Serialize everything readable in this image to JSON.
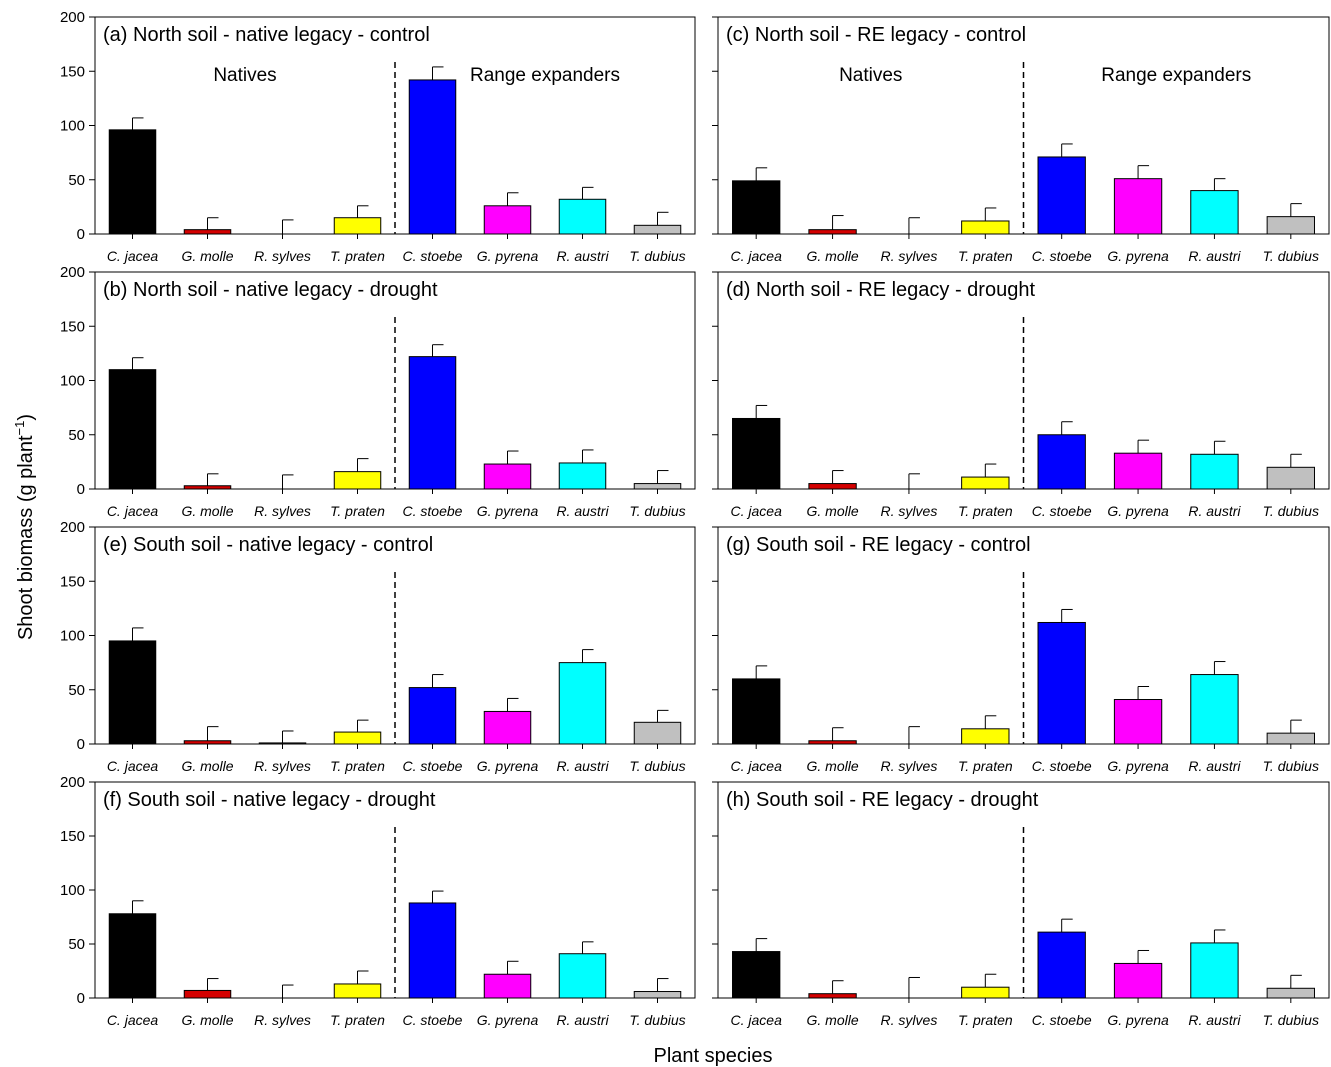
{
  "figure": {
    "ylabel": "Shoot biomass (g plant",
    "ylabel_sup": "−1",
    "ylabel_close": ")",
    "xlabel": "Plant species"
  },
  "chart_data": [
    {
      "type": "bar",
      "title": "(a) North soil - native legacy - control",
      "categories": [
        "C. jacea",
        "G. molle",
        "R. sylves",
        "T. praten",
        "C. stoebe",
        "G. pyrena",
        "R. austri",
        "T. dubius"
      ],
      "values": [
        96,
        4,
        0,
        15,
        142,
        26,
        32,
        8
      ],
      "error": [
        11,
        11,
        13,
        11,
        12,
        12,
        11,
        12
      ],
      "group_labels": [
        "Natives",
        "Range expanders"
      ],
      "ylim": [
        0,
        200
      ],
      "yticks": [
        0,
        50,
        100,
        150,
        200
      ],
      "colors": [
        "#000000",
        "#d40000",
        "#7a7a7a",
        "#ffff00",
        "#0000ff",
        "#ff00ff",
        "#00ffff",
        "#c0c0c0"
      ]
    },
    {
      "type": "bar",
      "title": "(c) North soil - RE legacy - control",
      "categories": [
        "C. jacea",
        "G. molle",
        "R. sylves",
        "T. praten",
        "C. stoebe",
        "G. pyrena",
        "R. austri",
        "T. dubius"
      ],
      "values": [
        49,
        4,
        0,
        12,
        71,
        51,
        40,
        16
      ],
      "error": [
        12,
        13,
        15,
        12,
        12,
        12,
        11,
        12
      ],
      "group_labels": [
        "Natives",
        "Range expanders"
      ],
      "ylim": [
        0,
        200
      ],
      "yticks": [
        0,
        50,
        100,
        150,
        200
      ],
      "colors": [
        "#000000",
        "#d40000",
        "#7a7a7a",
        "#ffff00",
        "#0000ff",
        "#ff00ff",
        "#00ffff",
        "#c0c0c0"
      ]
    },
    {
      "type": "bar",
      "title": "(b) North soil - native legacy - drought",
      "categories": [
        "C. jacea",
        "G. molle",
        "R. sylves",
        "T. praten",
        "C. stoebe",
        "G. pyrena",
        "R. austri",
        "T. dubius"
      ],
      "values": [
        110,
        3,
        0,
        16,
        122,
        23,
        24,
        5
      ],
      "error": [
        11,
        11,
        13,
        12,
        11,
        12,
        12,
        12
      ],
      "group_labels": [],
      "ylim": [
        0,
        200
      ],
      "yticks": [
        0,
        50,
        100,
        150,
        200
      ],
      "colors": [
        "#000000",
        "#d40000",
        "#7a7a7a",
        "#ffff00",
        "#0000ff",
        "#ff00ff",
        "#00ffff",
        "#c0c0c0"
      ]
    },
    {
      "type": "bar",
      "title": "(d) North soil - RE legacy - drought",
      "categories": [
        "C. jacea",
        "G. molle",
        "R. sylves",
        "T. praten",
        "C. stoebe",
        "G. pyrena",
        "R. austri",
        "T. dubius"
      ],
      "values": [
        65,
        5,
        0,
        11,
        50,
        33,
        32,
        20
      ],
      "error": [
        12,
        12,
        14,
        12,
        12,
        12,
        12,
        12
      ],
      "group_labels": [],
      "ylim": [
        0,
        200
      ],
      "yticks": [
        0,
        50,
        100,
        150,
        200
      ],
      "colors": [
        "#000000",
        "#d40000",
        "#7a7a7a",
        "#ffff00",
        "#0000ff",
        "#ff00ff",
        "#00ffff",
        "#c0c0c0"
      ]
    },
    {
      "type": "bar",
      "title": "(e) South soil - native legacy - control",
      "categories": [
        "C. jacea",
        "G. molle",
        "R. sylves",
        "T. praten",
        "C. stoebe",
        "G. pyrena",
        "R. austri",
        "T. dubius"
      ],
      "values": [
        95,
        3,
        1,
        11,
        52,
        30,
        75,
        20
      ],
      "error": [
        12,
        13,
        11,
        11,
        12,
        12,
        12,
        11
      ],
      "group_labels": [],
      "ylim": [
        0,
        200
      ],
      "yticks": [
        0,
        50,
        100,
        150,
        200
      ],
      "colors": [
        "#000000",
        "#d40000",
        "#7a7a7a",
        "#ffff00",
        "#0000ff",
        "#ff00ff",
        "#00ffff",
        "#c0c0c0"
      ]
    },
    {
      "type": "bar",
      "title": "(g) South soil - RE legacy - control",
      "categories": [
        "C. jacea",
        "G. molle",
        "R. sylves",
        "T. praten",
        "C. stoebe",
        "G. pyrena",
        "R. austri",
        "T. dubius"
      ],
      "values": [
        60,
        3,
        0,
        14,
        112,
        41,
        64,
        10
      ],
      "error": [
        12,
        12,
        16,
        12,
        12,
        12,
        12,
        12
      ],
      "group_labels": [],
      "ylim": [
        0,
        200
      ],
      "yticks": [
        0,
        50,
        100,
        150,
        200
      ],
      "colors": [
        "#000000",
        "#d40000",
        "#7a7a7a",
        "#ffff00",
        "#0000ff",
        "#ff00ff",
        "#00ffff",
        "#c0c0c0"
      ]
    },
    {
      "type": "bar",
      "title": "(f) South soil - native legacy - drought",
      "categories": [
        "C. jacea",
        "G. molle",
        "R. sylves",
        "T. praten",
        "C. stoebe",
        "G. pyrena",
        "R. austri",
        "T. dubius"
      ],
      "values": [
        78,
        7,
        0,
        13,
        88,
        22,
        41,
        6
      ],
      "error": [
        12,
        11,
        12,
        12,
        11,
        12,
        11,
        12
      ],
      "group_labels": [],
      "ylim": [
        0,
        200
      ],
      "yticks": [
        0,
        50,
        100,
        150,
        200
      ],
      "colors": [
        "#000000",
        "#d40000",
        "#7a7a7a",
        "#ffff00",
        "#0000ff",
        "#ff00ff",
        "#00ffff",
        "#c0c0c0"
      ]
    },
    {
      "type": "bar",
      "title": "(h) South soil - RE legacy - drought",
      "categories": [
        "C. jacea",
        "G. molle",
        "R. sylves",
        "T. praten",
        "C. stoebe",
        "G. pyrena",
        "R. austri",
        "T. dubius"
      ],
      "values": [
        43,
        4,
        0,
        10,
        61,
        32,
        51,
        9
      ],
      "error": [
        12,
        12,
        19,
        12,
        12,
        12,
        12,
        12
      ],
      "group_labels": [],
      "ylim": [
        0,
        200
      ],
      "yticks": [
        0,
        50,
        100,
        150,
        200
      ],
      "colors": [
        "#000000",
        "#d40000",
        "#7a7a7a",
        "#ffff00",
        "#0000ff",
        "#ff00ff",
        "#00ffff",
        "#c0c0c0"
      ]
    }
  ]
}
